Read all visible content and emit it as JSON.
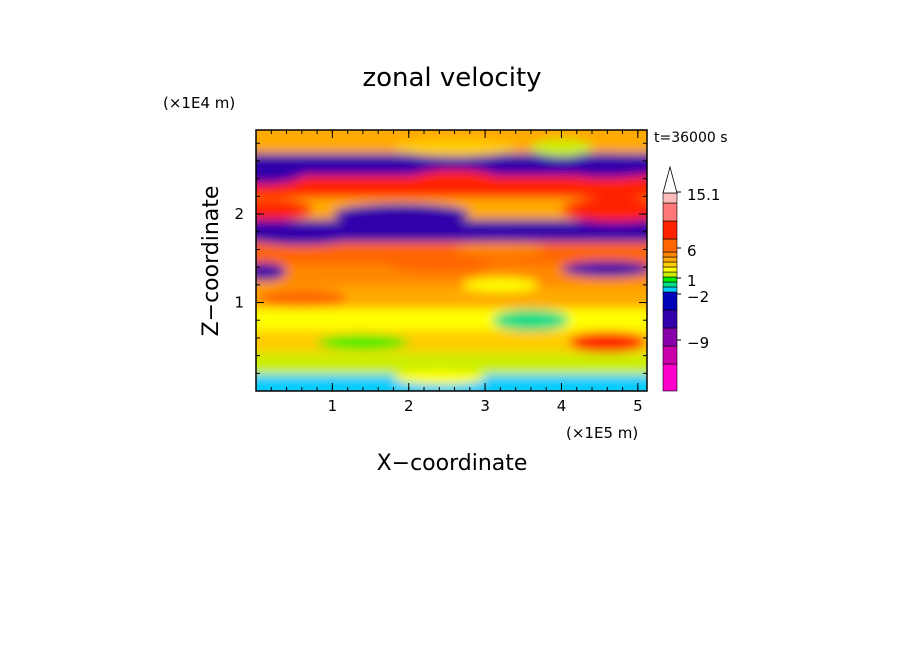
{
  "chart_data": {
    "type": "heatmap",
    "title": "zonal velocity",
    "xlabel": "X−coordinate",
    "ylabel": "Z−coordinate",
    "x_scale_label": "(×1E5 m)",
    "y_scale_label": "(×1E4 m)",
    "time_label": "t=36000 s",
    "x_ticks": [
      "1",
      "2",
      "3",
      "4",
      "5"
    ],
    "y_ticks": [
      "1",
      "2"
    ],
    "xlim": [
      0,
      5.12
    ],
    "ylim": [
      0,
      2.95
    ],
    "colorbar": {
      "labels": [
        "15.1",
        "6",
        "1",
        "−2",
        "−9"
      ],
      "label_values": [
        15.1,
        6,
        1,
        -2,
        -9
      ],
      "colors": [
        "#ff00cc",
        "#cc00aa",
        "#8800aa",
        "#3300aa",
        "#0000bb",
        "#00ccff",
        "#00dd88",
        "#00ee00",
        "#ccee00",
        "#ffff00",
        "#ffcc00",
        "#ffaa00",
        "#ff8800",
        "#ff6600",
        "#ff2200",
        "#ff7777",
        "#ffbbbb",
        "#ffffff"
      ]
    },
    "bands": [
      {
        "z": 2.75,
        "value": 3
      },
      {
        "z": 2.55,
        "value": -9
      },
      {
        "z": 2.3,
        "value": 6
      },
      {
        "z": 2.05,
        "value": 3
      },
      {
        "z": 1.8,
        "value": -9
      },
      {
        "z": 1.55,
        "value": 5
      },
      {
        "z": 1.3,
        "value": 4
      },
      {
        "z": 1.05,
        "value": 3
      },
      {
        "z": 0.8,
        "value": 1
      },
      {
        "z": 0.55,
        "value": 2
      },
      {
        "z": 0.3,
        "value": 0
      },
      {
        "z": 0.05,
        "value": -3
      }
    ],
    "blobs": [
      {
        "x": 0.1,
        "z": 2.48,
        "rx": 0.55,
        "rz": 0.14,
        "value": -9
      },
      {
        "x": 0.2,
        "z": 2.05,
        "rx": 0.55,
        "rz": 0.12,
        "value": 8
      },
      {
        "x": 0.6,
        "z": 1.75,
        "rx": 0.7,
        "rz": 0.1,
        "value": -9
      },
      {
        "x": 0.1,
        "z": 1.35,
        "rx": 0.3,
        "rz": 0.1,
        "value": -9
      },
      {
        "x": 1.9,
        "z": 2.0,
        "rx": 0.9,
        "rz": 0.12,
        "value": -9
      },
      {
        "x": 2.6,
        "z": 2.38,
        "rx": 0.6,
        "rz": 0.12,
        "value": 8
      },
      {
        "x": 4.6,
        "z": 2.55,
        "rx": 0.7,
        "rz": 0.14,
        "value": -9
      },
      {
        "x": 4.7,
        "z": 2.05,
        "rx": 0.7,
        "rz": 0.14,
        "value": 8
      },
      {
        "x": 4.6,
        "z": 1.38,
        "rx": 0.6,
        "rz": 0.09,
        "value": -9
      },
      {
        "x": 3.2,
        "z": 1.6,
        "rx": 0.6,
        "rz": 0.08,
        "value": 4
      },
      {
        "x": 3.2,
        "z": 1.2,
        "rx": 0.5,
        "rz": 0.08,
        "value": 1
      },
      {
        "x": 2.4,
        "z": 1.45,
        "rx": 0.7,
        "rz": 0.12,
        "value": 5
      },
      {
        "x": 0.6,
        "z": 1.05,
        "rx": 0.6,
        "rz": 0.1,
        "value": 5
      },
      {
        "x": 4.6,
        "z": 0.55,
        "rx": 0.5,
        "rz": 0.12,
        "value": 6
      },
      {
        "x": 3.6,
        "z": 0.8,
        "rx": 0.5,
        "rz": 0.12,
        "value": -2
      },
      {
        "x": 1.4,
        "z": 0.55,
        "rx": 0.6,
        "rz": 0.08,
        "value": -1
      },
      {
        "x": 2.4,
        "z": 0.15,
        "rx": 0.6,
        "rz": 0.08,
        "value": 1
      },
      {
        "x": 2.6,
        "z": 2.75,
        "rx": 0.8,
        "rz": 0.1,
        "value": 2
      },
      {
        "x": 4.0,
        "z": 2.75,
        "rx": 0.4,
        "rz": 0.1,
        "value": 0
      }
    ]
  }
}
